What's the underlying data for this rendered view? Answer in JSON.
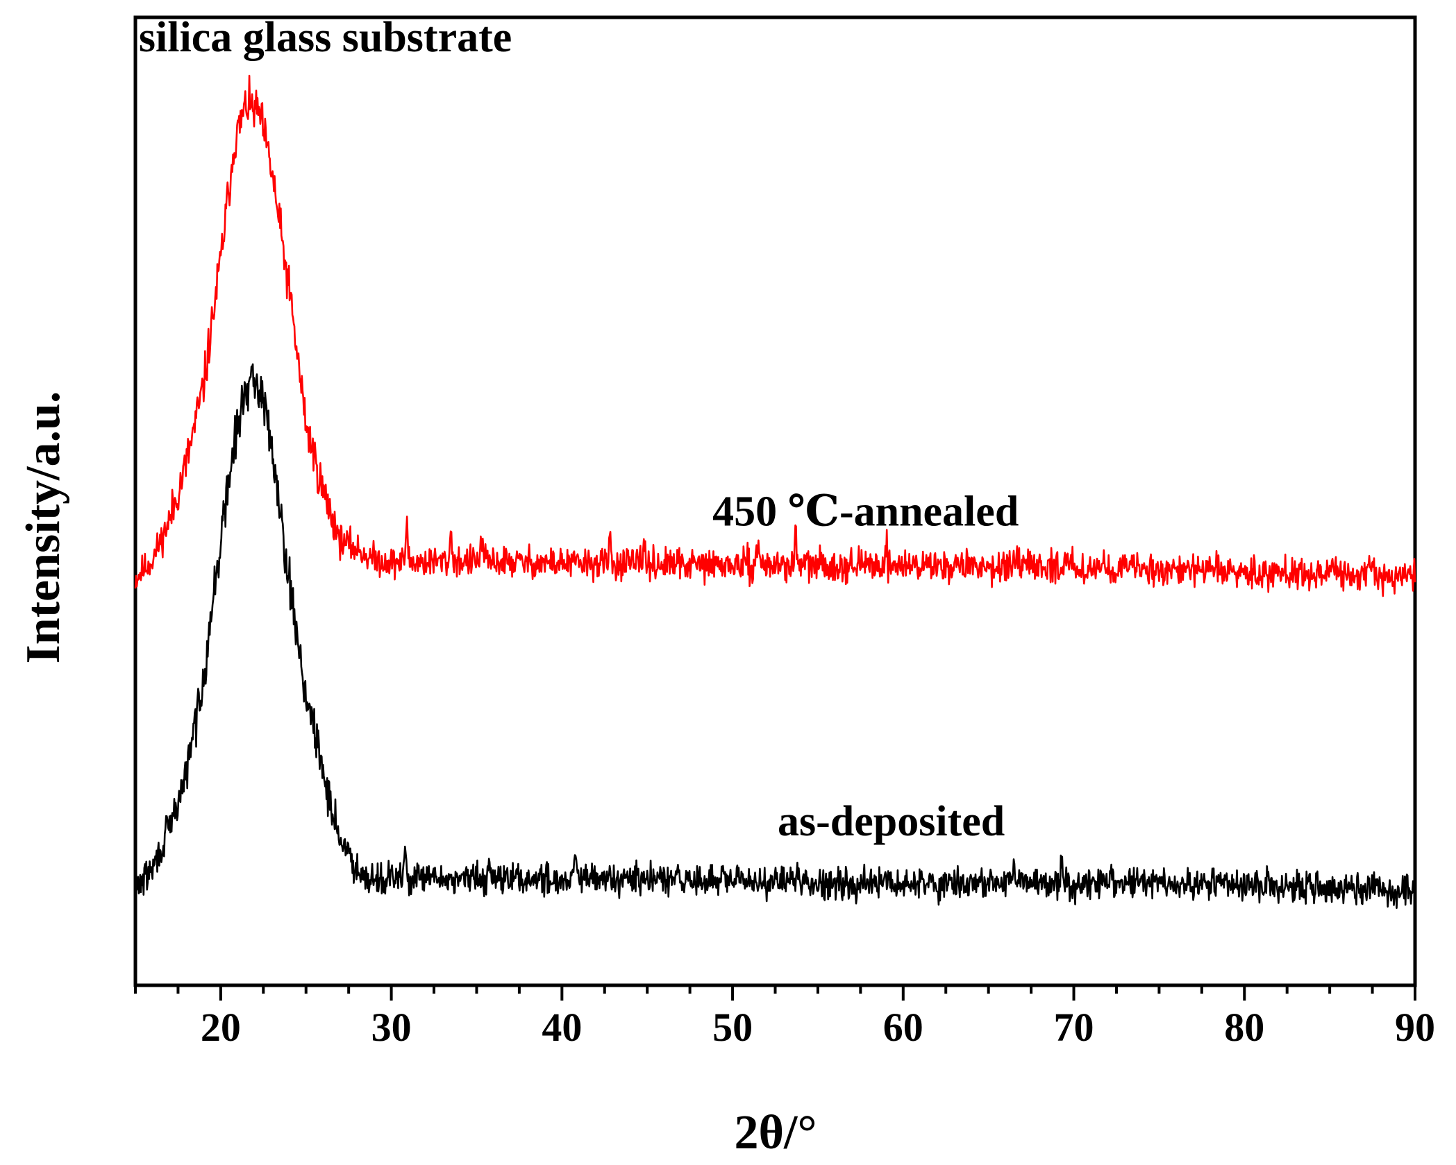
{
  "chart_data": {
    "type": "line",
    "title": "",
    "xlabel": "2θ/°",
    "ylabel": "Intensity/a.u.",
    "xlim": [
      15,
      90
    ],
    "ylim": [
      0,
      100
    ],
    "x_ticks": [
      20,
      30,
      40,
      50,
      60,
      70,
      80,
      90
    ],
    "x_tick_labels": [
      "20",
      "30",
      "40",
      "50",
      "60",
      "70",
      "80",
      "90"
    ],
    "y_ticks_shown": false,
    "grid": false,
    "legend": "none",
    "annotations": [
      {
        "text": "silica glass substrate",
        "x": 15.2,
        "y": 96.5,
        "anchor": "start"
      },
      {
        "text": "450 ℃-annealed",
        "x": 57.8,
        "y": 47.5,
        "anchor": "middle"
      },
      {
        "text": "as-deposited",
        "x": 59.3,
        "y": 15.5,
        "anchor": "middle"
      }
    ],
    "series": [
      {
        "name": "450 ℃-annealed",
        "color": "#ff0000",
        "baseline": 42.5,
        "noise": 1.6,
        "seed": 11,
        "profile_x": [
          15,
          16,
          17,
          18,
          19,
          20,
          20.8,
          21.5,
          22.3,
          23,
          24,
          25,
          26,
          27,
          28,
          29,
          30,
          35,
          40,
          50,
          60,
          70,
          80,
          90
        ],
        "profile_y": [
          42,
          44,
          48,
          54,
          62,
          75,
          87,
          91,
          90,
          84,
          72,
          58,
          51,
          46,
          45,
          44,
          43.7,
          43.8,
          43.6,
          43.4,
          43.4,
          43.2,
          42.8,
          42.2
        ],
        "spike_x": [
          30.9,
          33.5,
          35.3,
          42.8,
          44.8,
          51.5,
          53.7,
          59.0,
          69.5
        ],
        "spike_y": [
          4.0,
          3.0,
          2.5,
          2.5,
          2.4,
          2.8,
          3.0,
          2.0,
          1.8
        ]
      },
      {
        "name": "as-deposited",
        "color": "#000000",
        "baseline": 10,
        "noise": 1.6,
        "seed": 29,
        "profile_x": [
          15,
          16,
          17,
          18,
          19,
          20,
          20.8,
          21.5,
          22.3,
          23,
          24,
          25,
          26,
          27,
          28,
          29,
          30,
          35,
          40,
          50,
          60,
          70,
          80,
          90
        ],
        "profile_y": [
          10,
          12,
          16,
          22,
          32,
          46,
          56,
          62,
          62,
          56,
          42,
          30,
          22,
          15,
          12,
          11,
          11,
          11,
          11,
          10.8,
          10.5,
          10.6,
          10.3,
          9.8
        ],
        "spike_x": [
          30.8,
          35.8,
          40.8,
          53.8,
          66.5,
          69.3,
          72.2
        ],
        "spike_y": [
          3.0,
          2.5,
          2.0,
          2.0,
          2.0,
          2.0,
          1.8
        ]
      }
    ]
  }
}
